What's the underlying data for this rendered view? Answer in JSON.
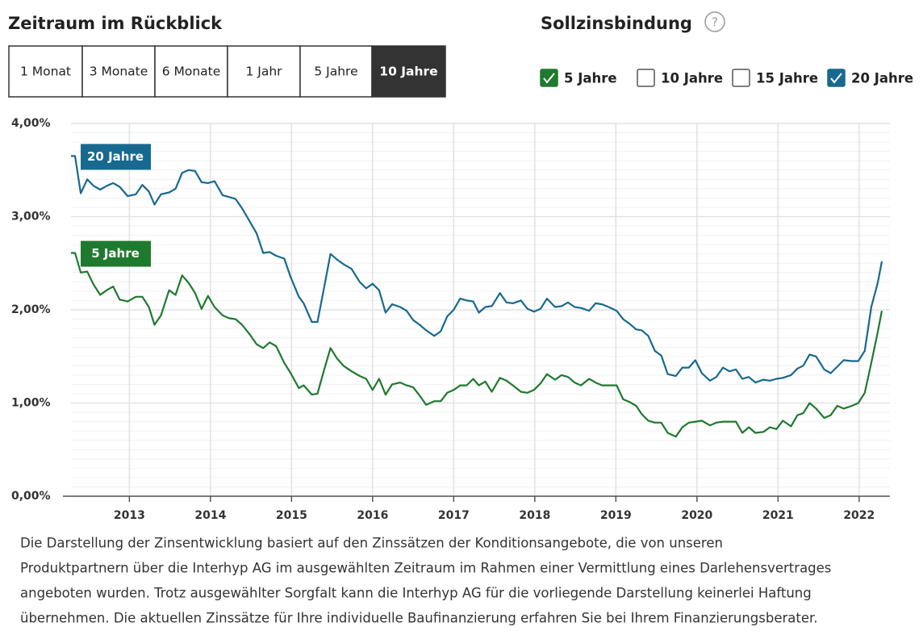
{
  "header": {
    "period_title": "Zeitraum im Rückblick",
    "fixation_title": "Sollzinsbindung",
    "help_icon": "?"
  },
  "period_buttons": [
    {
      "label": "1 Monat"
    },
    {
      "label": "3 Monate"
    },
    {
      "label": "6 Monate"
    },
    {
      "label": "1 Jahr"
    },
    {
      "label": "5 Jahre"
    },
    {
      "label": "10 Jahre",
      "selected": true
    }
  ],
  "fixation_checkboxes": [
    {
      "label": "5 Jahre",
      "checked": true,
      "color": "#1e7a2e"
    },
    {
      "label": "10 Jahre",
      "checked": false
    },
    {
      "label": "15 Jahre",
      "checked": false
    },
    {
      "label": "20 Jahre",
      "checked": true,
      "color": "#17698f"
    }
  ],
  "chart_data": {
    "type": "line",
    "x": [
      2012.28,
      2012.33,
      2012.4,
      2012.48,
      2012.56,
      2012.64,
      2012.72,
      2012.8,
      2012.88,
      2012.98,
      2013.08,
      2013.16,
      2013.24,
      2013.31,
      2013.39,
      2013.49,
      2013.57,
      2013.65,
      2013.73,
      2013.81,
      2013.89,
      2013.97,
      2014.05,
      2014.15,
      2014.23,
      2014.31,
      2014.39,
      2014.49,
      2014.57,
      2014.65,
      2014.73,
      2014.81,
      2014.91,
      2014.99,
      2015.09,
      2015.15,
      2015.25,
      2015.32,
      2015.4,
      2015.48,
      2015.56,
      2015.64,
      2015.74,
      2015.84,
      2015.92,
      2016.0,
      2016.08,
      2016.16,
      2016.24,
      2016.34,
      2016.42,
      2016.5,
      2016.58,
      2016.66,
      2016.76,
      2016.84,
      2016.92,
      2017.0,
      2017.08,
      2017.16,
      2017.24,
      2017.31,
      2017.39,
      2017.47,
      2017.57,
      2017.65,
      2017.73,
      2017.83,
      2017.91,
      2017.99,
      2018.07,
      2018.15,
      2018.25,
      2018.33,
      2018.41,
      2018.49,
      2018.57,
      2018.67,
      2018.75,
      2018.83,
      2018.91,
      2019.01,
      2019.09,
      2019.17,
      2019.25,
      2019.32,
      2019.4,
      2019.48,
      2019.56,
      2019.64,
      2019.74,
      2019.82,
      2019.9,
      2019.98,
      2020.06,
      2020.16,
      2020.24,
      2020.32,
      2020.4,
      2020.48,
      2020.56,
      2020.64,
      2020.72,
      2020.82,
      2020.9,
      2020.98,
      2021.06,
      2021.16,
      2021.24,
      2021.31,
      2021.39,
      2021.47,
      2021.57,
      2021.65,
      2021.73,
      2021.81,
      2021.91,
      2021.99,
      2022.07,
      2022.15,
      2022.23,
      2022.28
    ],
    "series": [
      {
        "name": "20 Jahre",
        "color": "#17698f",
        "values": [
          3.65,
          3.65,
          3.25,
          3.4,
          3.33,
          3.29,
          3.33,
          3.36,
          3.32,
          3.22,
          3.24,
          3.34,
          3.27,
          3.13,
          3.24,
          3.26,
          3.3,
          3.47,
          3.5,
          3.49,
          3.37,
          3.36,
          3.38,
          3.23,
          3.21,
          3.19,
          3.09,
          2.94,
          2.82,
          2.61,
          2.62,
          2.58,
          2.55,
          2.35,
          2.14,
          2.07,
          1.87,
          1.87,
          2.23,
          2.6,
          2.54,
          2.49,
          2.44,
          2.3,
          2.23,
          2.28,
          2.21,
          1.97,
          2.06,
          2.03,
          1.99,
          1.89,
          1.84,
          1.78,
          1.72,
          1.77,
          1.93,
          2.0,
          2.12,
          2.1,
          2.09,
          1.97,
          2.03,
          2.04,
          2.18,
          2.08,
          2.07,
          2.1,
          2.01,
          1.98,
          2.01,
          2.12,
          2.03,
          2.04,
          2.08,
          2.03,
          2.02,
          1.99,
          2.07,
          2.06,
          2.03,
          1.99,
          1.9,
          1.85,
          1.79,
          1.78,
          1.72,
          1.56,
          1.51,
          1.31,
          1.29,
          1.38,
          1.38,
          1.46,
          1.32,
          1.24,
          1.28,
          1.38,
          1.34,
          1.36,
          1.26,
          1.28,
          1.22,
          1.25,
          1.24,
          1.26,
          1.27,
          1.3,
          1.37,
          1.4,
          1.52,
          1.5,
          1.36,
          1.32,
          1.39,
          1.46,
          1.45,
          1.45,
          1.56,
          2.03,
          2.29,
          2.52
        ]
      },
      {
        "name": "5 Jahre",
        "color": "#1e7a2e",
        "values": [
          2.61,
          2.61,
          2.4,
          2.41,
          2.27,
          2.16,
          2.21,
          2.25,
          2.11,
          2.09,
          2.14,
          2.14,
          2.03,
          1.84,
          1.94,
          2.21,
          2.16,
          2.37,
          2.29,
          2.18,
          2.01,
          2.15,
          2.03,
          1.94,
          1.91,
          1.9,
          1.84,
          1.73,
          1.63,
          1.59,
          1.65,
          1.61,
          1.43,
          1.32,
          1.16,
          1.19,
          1.09,
          1.1,
          1.35,
          1.59,
          1.48,
          1.4,
          1.34,
          1.29,
          1.26,
          1.14,
          1.26,
          1.09,
          1.2,
          1.22,
          1.19,
          1.17,
          1.08,
          0.98,
          1.02,
          1.02,
          1.11,
          1.14,
          1.19,
          1.19,
          1.26,
          1.19,
          1.23,
          1.12,
          1.27,
          1.24,
          1.19,
          1.12,
          1.11,
          1.14,
          1.21,
          1.31,
          1.25,
          1.3,
          1.28,
          1.22,
          1.19,
          1.26,
          1.22,
          1.19,
          1.19,
          1.19,
          1.04,
          1.01,
          0.97,
          0.88,
          0.81,
          0.79,
          0.79,
          0.68,
          0.64,
          0.74,
          0.79,
          0.8,
          0.81,
          0.76,
          0.79,
          0.8,
          0.8,
          0.8,
          0.68,
          0.74,
          0.68,
          0.69,
          0.74,
          0.72,
          0.81,
          0.75,
          0.87,
          0.89,
          1.0,
          0.94,
          0.84,
          0.87,
          0.97,
          0.94,
          0.97,
          1.0,
          1.11,
          1.43,
          1.76,
          1.99
        ]
      }
    ],
    "xlim": [
      2012.28,
      2022.38
    ],
    "xticks": [
      2013,
      2014,
      2015,
      2016,
      2017,
      2018,
      2019,
      2020,
      2021,
      2022
    ],
    "ylim": [
      0,
      4
    ],
    "yticks": [
      {
        "value": 0,
        "label": "0,00%"
      },
      {
        "value": 1,
        "label": "1,00%"
      },
      {
        "value": 2,
        "label": "2,00%"
      },
      {
        "value": 3,
        "label": "3,00%"
      },
      {
        "value": 4,
        "label": "4,00%"
      }
    ],
    "grid": true
  },
  "disclaimer": [
    "Die Darstellung der Zinsentwicklung basiert auf den Zinssätzen der Konditionsangebote, die von unseren",
    "Produktpartnern über die Interhyp AG im ausgewählten Zeitraum im Rahmen einer Vermittlung eines Darlehensvertrages",
    "angeboten wurden. Trotz ausgewählter Sorgfalt kann die Interhyp AG für die vorliegende Darstellung keinerlei Haftung",
    "übernehmen. Die aktuellen Zinssätze für Ihre individuelle Baufinanzierung erfahren Sie bei Ihrem Finanzierungsberater."
  ]
}
